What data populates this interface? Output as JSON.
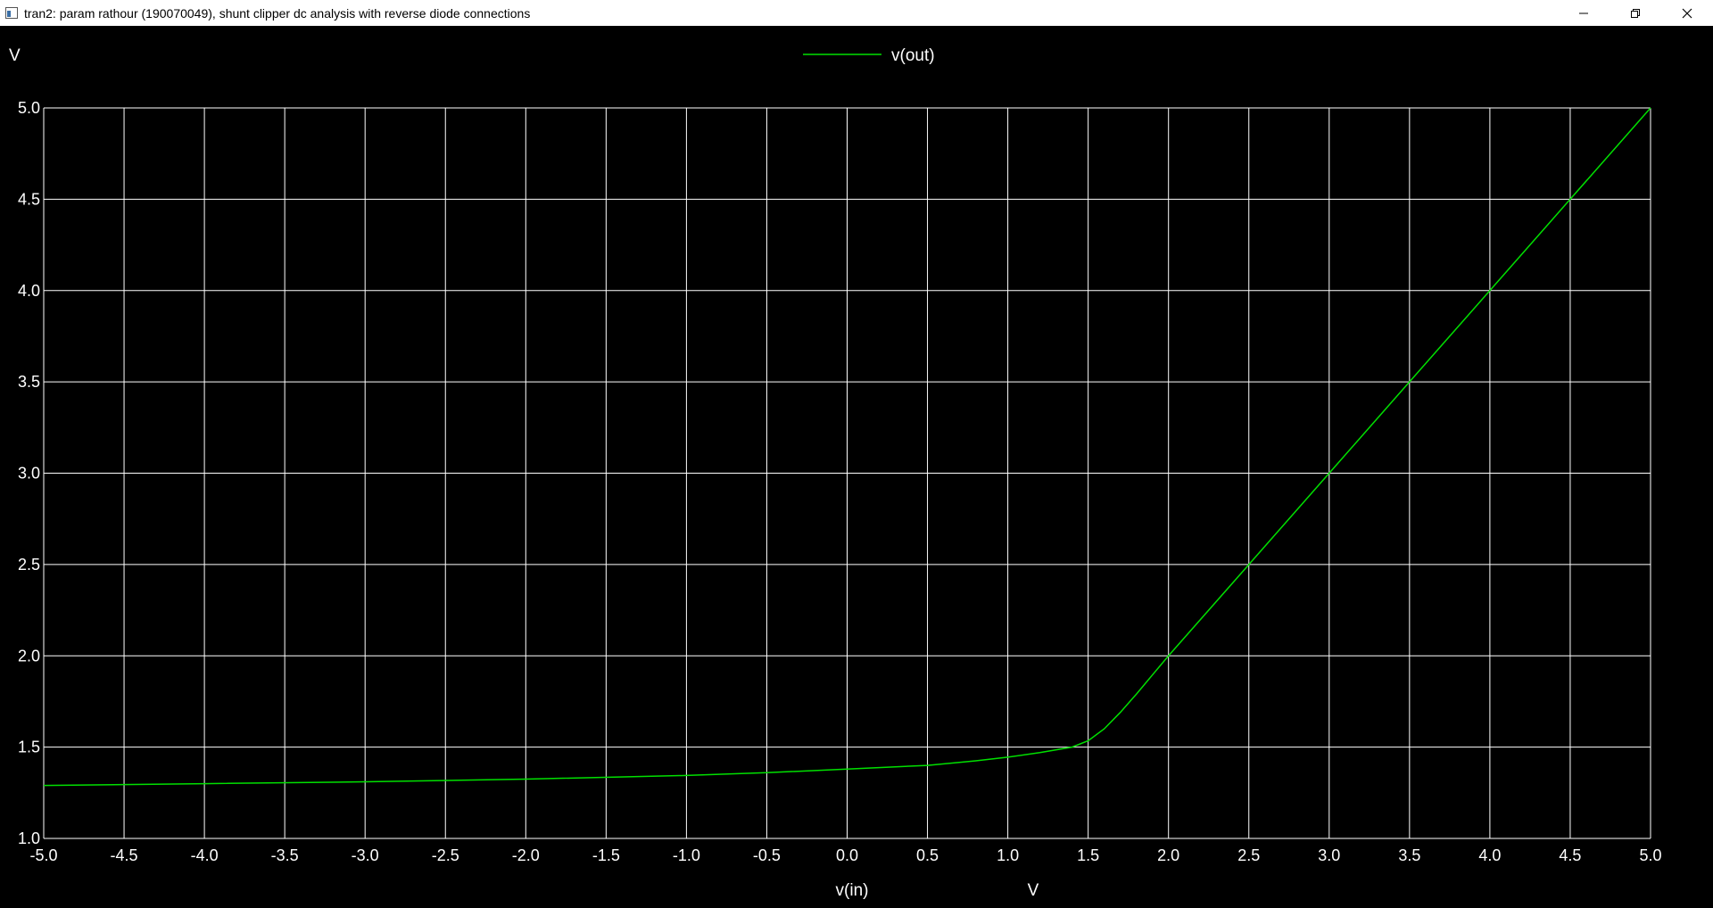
{
  "window": {
    "title": "tran2: param rathour (190070049), shunt clipper dc analysis with reverse diode connections",
    "icon": "app-window-icon",
    "controls": [
      "minimize-icon",
      "restore-icon",
      "close-icon"
    ]
  },
  "colors": {
    "background": "#000000",
    "grid": "#ffffff",
    "trace": "#00e000"
  },
  "chart_data": {
    "type": "line",
    "xlabel": "v(in)",
    "xunit": "V",
    "yunit": "V",
    "xlim": [
      -5.0,
      5.0
    ],
    "ylim": [
      1.0,
      5.0
    ],
    "xticks": [
      "-5.0",
      "-4.5",
      "-4.0",
      "-3.5",
      "-3.0",
      "-2.5",
      "-2.0",
      "-1.5",
      "-1.0",
      "-0.5",
      "0.0",
      "0.5",
      "1.0",
      "1.5",
      "2.0",
      "2.5",
      "3.0",
      "3.5",
      "4.0",
      "4.5",
      "5.0"
    ],
    "yticks": [
      "1.0",
      "1.5",
      "2.0",
      "2.5",
      "3.0",
      "3.5",
      "4.0",
      "4.5",
      "5.0"
    ],
    "grid": true,
    "legend_position": "top-center",
    "series": [
      {
        "name": "v(out)",
        "color": "#00e000",
        "x": [
          -5.0,
          -4.0,
          -3.0,
          -2.0,
          -1.0,
          -0.5,
          0.0,
          0.5,
          0.8,
          1.0,
          1.2,
          1.4,
          1.5,
          1.6,
          1.7,
          1.8,
          1.9,
          2.0,
          2.5,
          3.0,
          3.5,
          4.0,
          4.5,
          5.0
        ],
        "y": [
          1.29,
          1.3,
          1.31,
          1.325,
          1.345,
          1.36,
          1.38,
          1.4,
          1.425,
          1.445,
          1.47,
          1.5,
          1.535,
          1.6,
          1.69,
          1.79,
          1.895,
          2.0,
          2.5,
          3.0,
          3.5,
          4.0,
          4.5,
          5.0
        ]
      }
    ]
  }
}
